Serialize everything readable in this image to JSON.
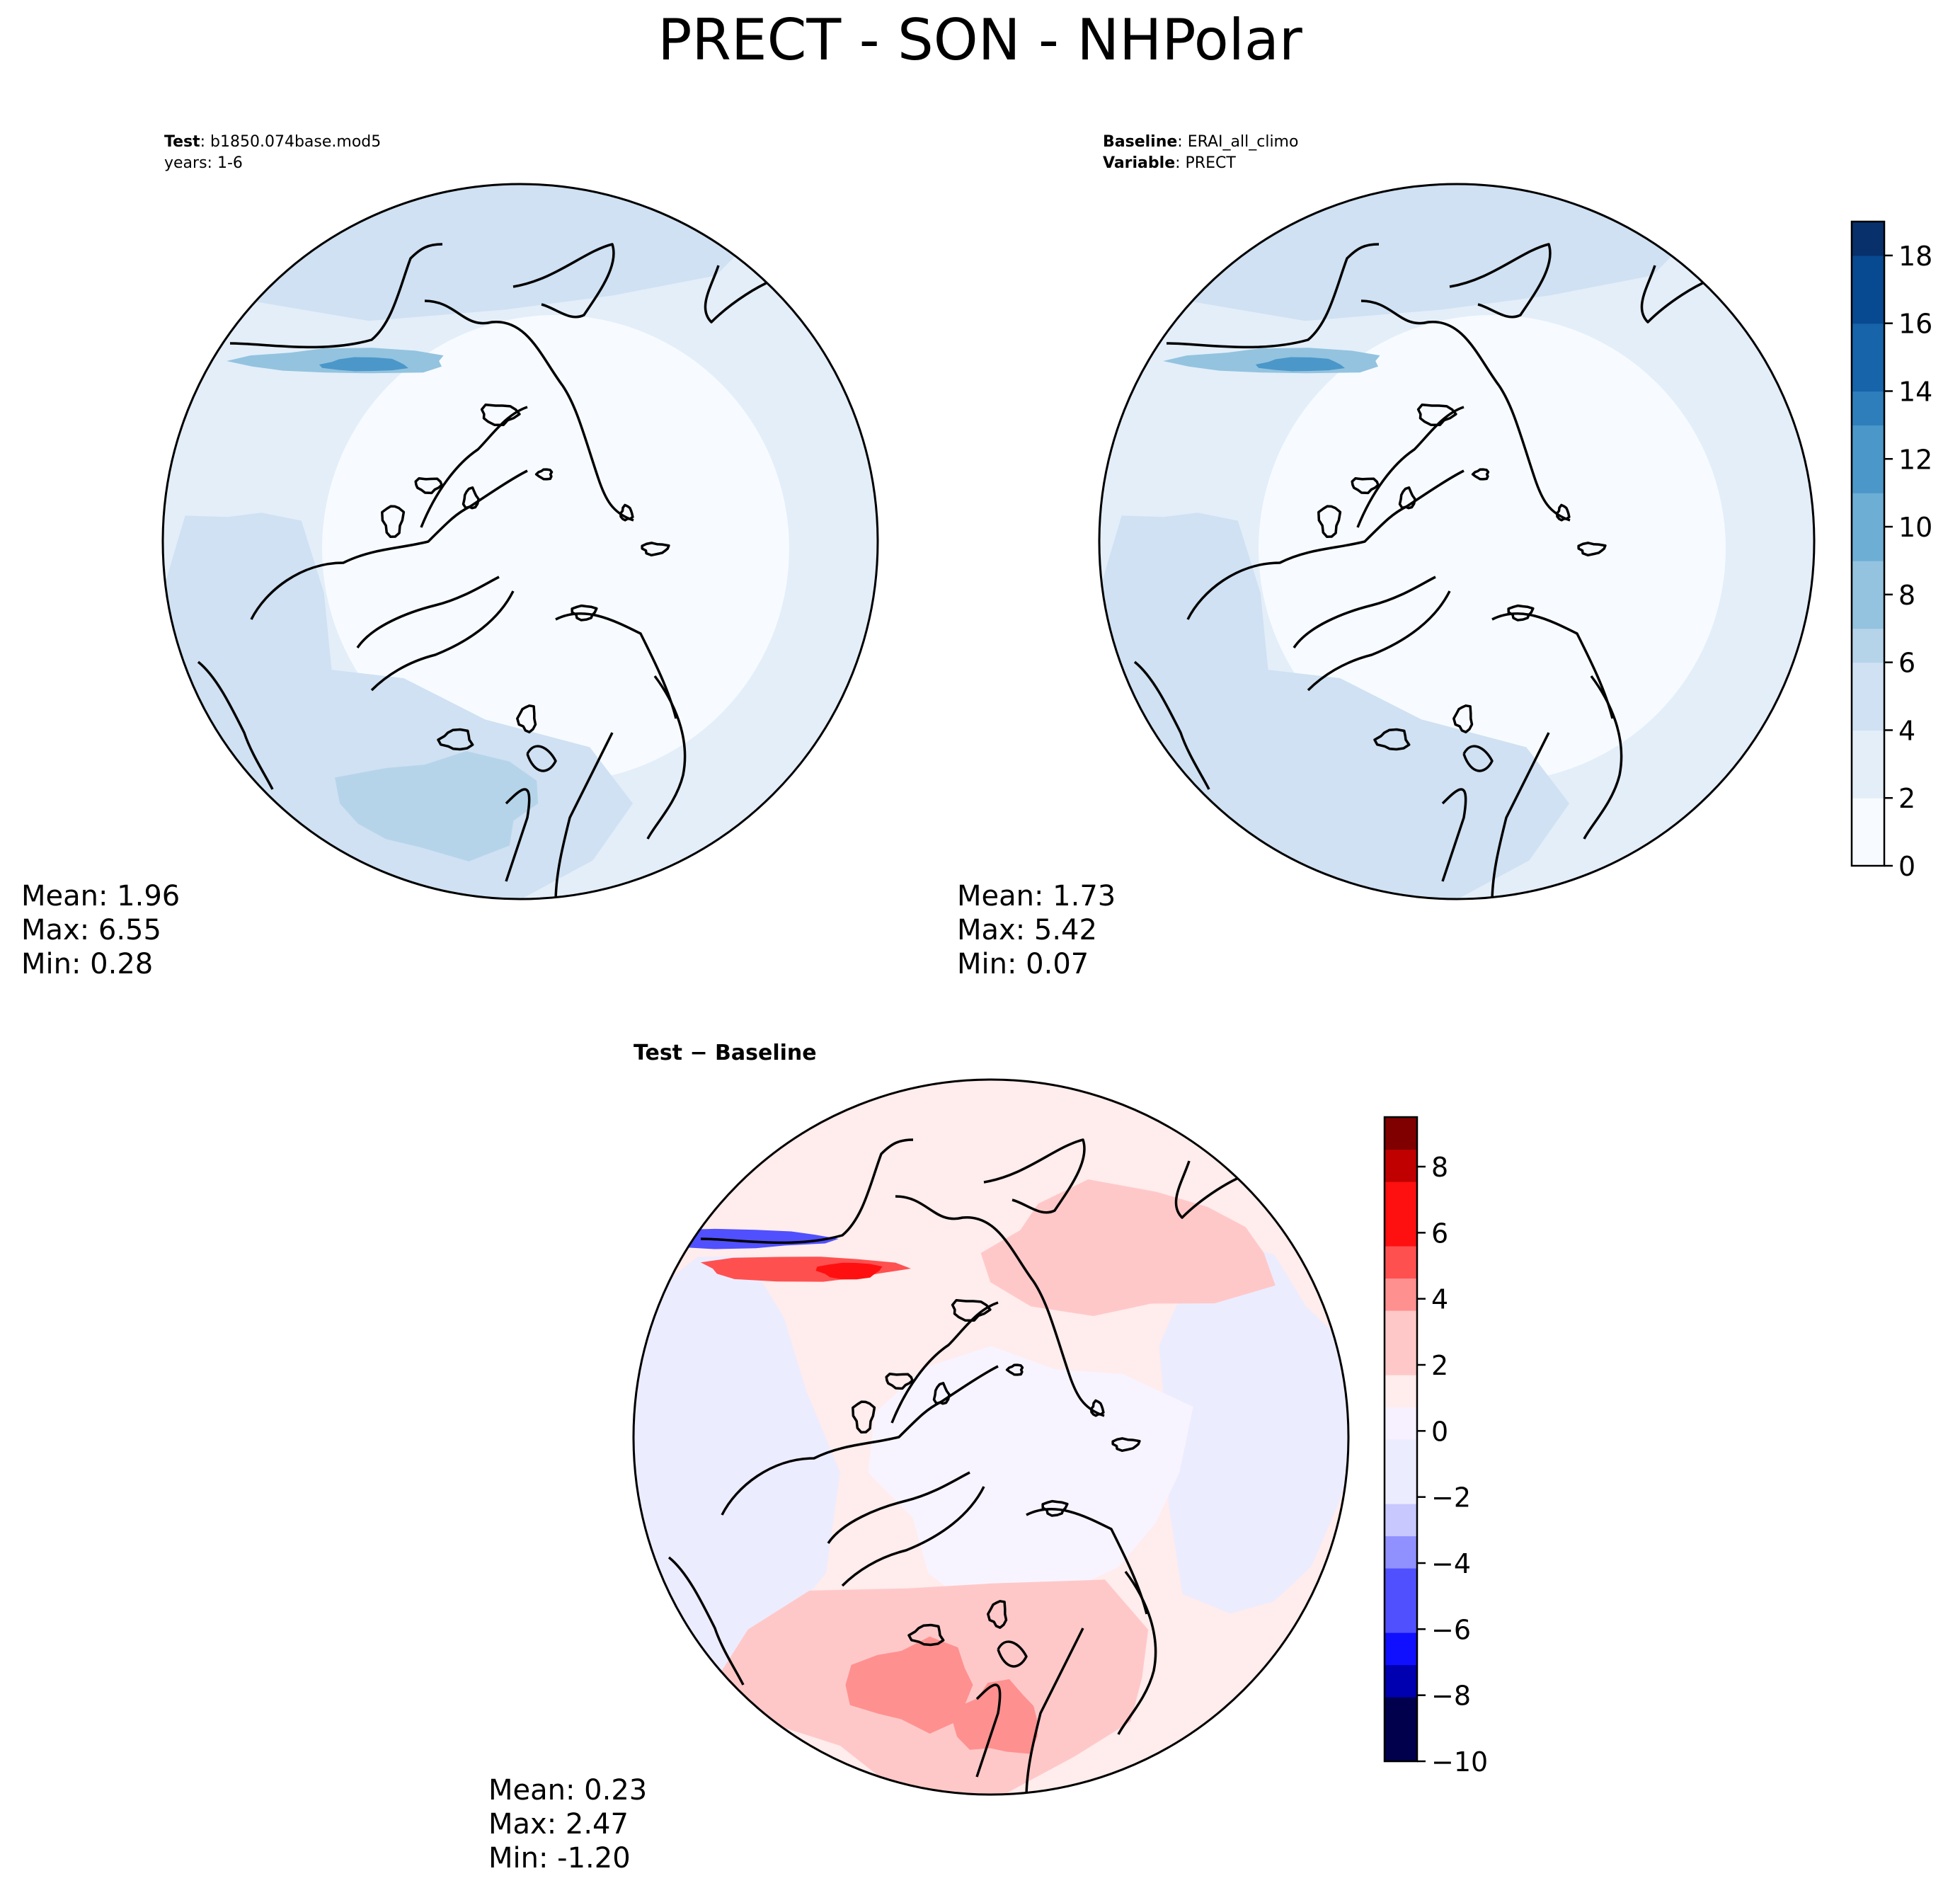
{
  "figure": {
    "title": "PRECT - SON - NHPolar"
  },
  "panels": {
    "test": {
      "label_bold": "Test",
      "label_value": ": b1850.074base.mod5",
      "years": "years: 1-6",
      "stats": {
        "mean": "Mean:  1.96",
        "max": "Max:  6.55",
        "min": "Min:  0.28"
      }
    },
    "baseline": {
      "label_bold": "Baseline",
      "label_value": ": ERAI_all_climo",
      "variable_bold": "Variable",
      "variable_value": ": PRECT",
      "stats": {
        "mean": "Mean:  1.73",
        "max": "Max:  5.42",
        "min": "Min:  0.07"
      }
    },
    "diff": {
      "title": "Test − Baseline",
      "stats": {
        "mean": "Mean:  0.23",
        "max": "Max:  2.47",
        "min": "Min: -1.20"
      }
    }
  },
  "colors": {
    "seq_blue": [
      "#f7fbff",
      "#e3eef9",
      "#cfe1f2",
      "#b5d4e9",
      "#93c3df",
      "#6daed5",
      "#4b97c9",
      "#2f7ebc",
      "#1764ab",
      "#084a91",
      "#08306b"
    ],
    "div_red_blue_neg": [
      "#00004c",
      "#0000b0",
      "#1010ff",
      "#5050ff",
      "#9090ff",
      "#c8c8ff",
      "#ececff"
    ],
    "div_red_blue_pos": [
      "#ffecec",
      "#ffc8c8",
      "#ff9090",
      "#ff5050",
      "#ff1010",
      "#c00000",
      "#800000"
    ],
    "coastline": "#000000"
  },
  "chart_data": [
    {
      "type": "heatmap",
      "projection": "north polar stereographic",
      "panel": "test",
      "colorbar": null,
      "summary": {
        "mean": 1.96,
        "max": 6.55,
        "min": 0.28
      }
    },
    {
      "type": "heatmap",
      "projection": "north polar stereographic",
      "panel": "baseline",
      "colorbar": {
        "colormap": "Blues",
        "range": [
          0,
          19
        ],
        "ticks": [
          0,
          2,
          4,
          6,
          8,
          10,
          12,
          14,
          16,
          18
        ],
        "tick_labels": [
          "0",
          "2",
          "4",
          "6",
          "8",
          "10",
          "12",
          "14",
          "16",
          "18"
        ]
      },
      "summary": {
        "mean": 1.73,
        "max": 5.42,
        "min": 0.07
      }
    },
    {
      "type": "heatmap",
      "projection": "north polar stereographic",
      "panel": "diff",
      "colorbar": {
        "colormap": "seismic",
        "range": [
          -10,
          9.5
        ],
        "ticks": [
          -10,
          -8,
          -6,
          -4,
          -2,
          0,
          2,
          4,
          6,
          8
        ],
        "tick_labels": [
          "−10",
          "−8",
          "−6",
          "−4",
          "−2",
          "0",
          "2",
          "4",
          "6",
          "8"
        ]
      },
      "summary": {
        "mean": 0.23,
        "max": 2.47,
        "min": -1.2
      }
    }
  ]
}
